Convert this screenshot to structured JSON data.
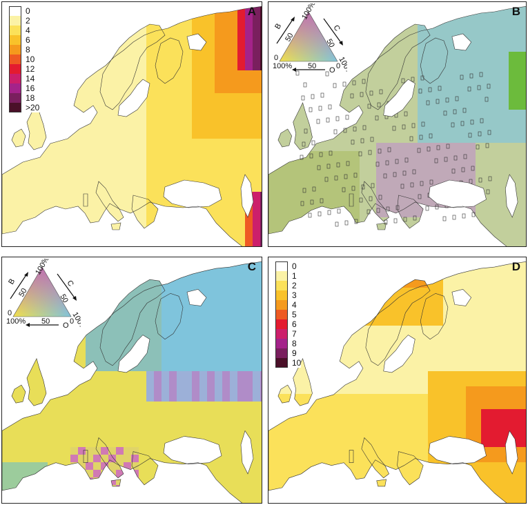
{
  "panels": {
    "A": {
      "letter": "A",
      "legend": [
        {
          "label": "0",
          "color": "#ffffff"
        },
        {
          "label": "2",
          "color": "#fbf2a6"
        },
        {
          "label": "4",
          "color": "#fbe15a"
        },
        {
          "label": "6",
          "color": "#f9c22a"
        },
        {
          "label": "8",
          "color": "#f59a1d"
        },
        {
          "label": "10",
          "color": "#ee5a23"
        },
        {
          "label": "12",
          "color": "#e31b30"
        },
        {
          "label": "14",
          "color": "#cc1f6b"
        },
        {
          "label": "16",
          "color": "#a4238a"
        },
        {
          "label": "18",
          "color": "#7a1f5e"
        },
        {
          "label": ">20",
          "color": "#4a1028"
        }
      ]
    },
    "B": {
      "letter": "B",
      "ternary": {
        "top_label": "100%",
        "axis_b": "B",
        "axis_c": "C",
        "axis_o": "O",
        "left_tick": "50",
        "right_tick": "50",
        "bottom_tick": "50",
        "bottom_left": "100%",
        "bottom_right": "0",
        "right_corner": "100%",
        "left_zero": "0"
      }
    },
    "C": {
      "letter": "C",
      "ternary": {
        "top_label": "100%",
        "axis_b": "B",
        "axis_c": "C",
        "axis_o": "O",
        "left_tick": "50",
        "right_tick": "50",
        "bottom_tick": "50",
        "bottom_left": "100%",
        "bottom_right": "0",
        "right_corner": "100%",
        "left_zero": "0"
      }
    },
    "D": {
      "letter": "D",
      "legend": [
        {
          "label": "0",
          "color": "#ffffff"
        },
        {
          "label": "1",
          "color": "#fbf2a6"
        },
        {
          "label": "2",
          "color": "#fbe15a"
        },
        {
          "label": "3",
          "color": "#f9c22a"
        },
        {
          "label": "4",
          "color": "#f59a1d"
        },
        {
          "label": "5",
          "color": "#ee5a23"
        },
        {
          "label": "6",
          "color": "#e31b30"
        },
        {
          "label": "7",
          "color": "#cc1f6b"
        },
        {
          "label": "8",
          "color": "#a4238a"
        },
        {
          "label": "9",
          "color": "#7a1f5e"
        },
        {
          "label": "10",
          "color": "#4a1028"
        }
      ]
    }
  },
  "colors": {
    "land_base_A": "#fbf2a6",
    "land_base_D": "#fbeea0",
    "sea": "#ffffff",
    "coast": "#333333",
    "ternary_blue": "#7fc4dc",
    "ternary_green": "#6cbb3c",
    "ternary_yellow": "#f2e04a",
    "ternary_magenta": "#c070b0"
  }
}
